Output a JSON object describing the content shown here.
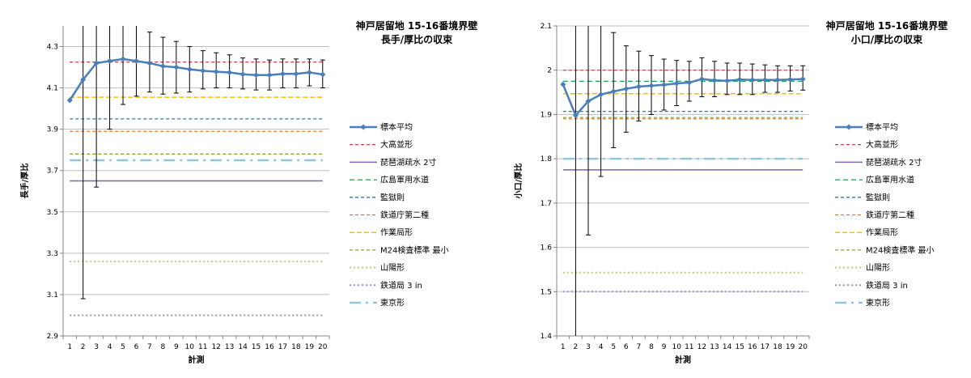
{
  "chart_data": [
    {
      "type": "line",
      "title_lines": [
        "神戸居留地 15-16番境界壁",
        "長手/厚比の収束"
      ],
      "xlabel": "計測",
      "ylabel": "長手/厚比",
      "x": [
        1,
        2,
        3,
        4,
        5,
        6,
        7,
        8,
        9,
        10,
        11,
        12,
        13,
        14,
        15,
        16,
        17,
        18,
        19,
        20
      ],
      "ylim": [
        2.9,
        4.4
      ],
      "yticks": [
        "2.9",
        "3.1",
        "3.3",
        "3.5",
        "3.7",
        "3.9",
        "4.1",
        "4.3"
      ],
      "ytick_values": [
        2.9,
        3.1,
        3.3,
        3.5,
        3.7,
        3.9,
        4.1,
        4.3
      ],
      "grid": true,
      "legend_position": "right",
      "series": [
        {
          "name": "標本平均",
          "values": [
            4.04,
            4.14,
            4.22,
            4.23,
            4.24,
            4.23,
            4.22,
            4.205,
            4.2,
            4.19,
            4.183,
            4.178,
            4.175,
            4.166,
            4.162,
            4.162,
            4.168,
            4.168,
            4.175,
            4.165
          ],
          "error_low": [
            4.04,
            3.08,
            3.62,
            3.9,
            4.02,
            4.06,
            4.08,
            4.07,
            4.075,
            4.08,
            4.095,
            4.1,
            4.1,
            4.095,
            4.09,
            4.09,
            4.1,
            4.1,
            4.11,
            4.1
          ],
          "error_high": [
            4.04,
            4.4,
            4.4,
            4.4,
            4.4,
            4.4,
            4.37,
            4.345,
            4.325,
            4.3,
            4.28,
            4.27,
            4.26,
            4.245,
            4.24,
            4.235,
            4.24,
            4.24,
            4.24,
            4.235
          ]
        }
      ],
      "reference_lines": [
        {
          "name": "大高並形",
          "value": 4.225,
          "color": "#c0504d",
          "dash": "4,3",
          "width": 1.3
        },
        {
          "name": "琵琶湖疏水 2寸",
          "value": 3.65,
          "color": "#7f66a8",
          "dash": "",
          "width": 1.5
        },
        {
          "name": "広島軍用水道",
          "value": null,
          "color": "#1aa34a",
          "dash": "6,4",
          "width": 1.3
        },
        {
          "name": "監獄則",
          "value": 3.95,
          "color": "#2e75b6",
          "dash": "4,3",
          "width": 1.3
        },
        {
          "name": "鉄道庁第二種",
          "value": 3.89,
          "color": "#e07b2a",
          "dash": "4,3",
          "width": 1.3
        },
        {
          "name": "作業局形",
          "value": 4.055,
          "color": "#f2c200",
          "dash": "6,3",
          "width": 1.5
        },
        {
          "name": "M24検査標準 最小",
          "value": 3.78,
          "color": "#7faa2d",
          "dash": "4,3",
          "width": 1.3
        },
        {
          "name": "山陽形",
          "value": 3.26,
          "color": "#c4c97a",
          "dash": "2,3",
          "width": 2
        },
        {
          "name": "鉄道局 3 in",
          "value": 3.0,
          "color": "#9b8fc9",
          "dash": "2,3",
          "width": 2
        },
        {
          "name": "東京形",
          "value": 3.75,
          "color": "#8fc6db",
          "dash": "14,6,3,6",
          "width": 2.5
        }
      ]
    },
    {
      "type": "line",
      "title_lines": [
        "神戸居留地 15-16番境界壁",
        "小口/厚比の収束"
      ],
      "xlabel": "計測",
      "ylabel": "小口/厚比",
      "x": [
        1,
        2,
        3,
        4,
        5,
        6,
        7,
        8,
        9,
        10,
        11,
        12,
        13,
        14,
        15,
        16,
        17,
        18,
        19,
        20
      ],
      "ylim": [
        1.4,
        2.1
      ],
      "yticks": [
        "1.4",
        "1.5",
        "1.6",
        "1.7",
        "1.8",
        "1.9",
        "2",
        "2.1"
      ],
      "ytick_values": [
        1.4,
        1.5,
        1.6,
        1.7,
        1.8,
        1.9,
        2.0,
        2.1
      ],
      "grid": true,
      "legend_position": "right",
      "series": [
        {
          "name": "標本平均",
          "values": [
            1.968,
            1.898,
            1.93,
            1.945,
            1.952,
            1.958,
            1.963,
            1.965,
            1.967,
            1.97,
            1.972,
            1.98,
            1.977,
            1.976,
            1.979,
            1.978,
            1.978,
            1.978,
            1.979,
            1.98
          ],
          "error_low": [
            1.968,
            1.4,
            1.628,
            1.76,
            1.825,
            1.86,
            1.885,
            1.9,
            1.91,
            1.92,
            1.93,
            1.94,
            1.94,
            1.945,
            1.945,
            1.945,
            1.95,
            1.95,
            1.953,
            1.955
          ],
          "error_high": [
            1.968,
            2.1,
            2.1,
            2.1,
            2.085,
            2.055,
            2.043,
            2.033,
            2.025,
            2.022,
            2.02,
            2.028,
            2.02,
            2.016,
            2.016,
            2.014,
            2.012,
            2.01,
            2.01,
            2.01
          ]
        }
      ],
      "reference_lines": [
        {
          "name": "大高並形",
          "value": 2.0,
          "color": "#c0504d",
          "dash": "4,3",
          "width": 1.3
        },
        {
          "name": "琵琶湖疏水 2寸",
          "value": 1.775,
          "color": "#7f66a8",
          "dash": "",
          "width": 1.5
        },
        {
          "name": "広島軍用水道",
          "value": 1.975,
          "color": "#1aa34a",
          "dash": "6,4",
          "width": 1.3
        },
        {
          "name": "監獄則",
          "value": 1.907,
          "color": "#2e75b6",
          "dash": "4,3",
          "width": 1.3
        },
        {
          "name": "鉄道庁第二種",
          "value": 1.89,
          "color": "#e07b2a",
          "dash": "4,3",
          "width": 1.3
        },
        {
          "name": "作業局形",
          "value": 1.947,
          "color": "#f2c200",
          "dash": "6,3",
          "width": 1.5
        },
        {
          "name": "M24検査標準 最小",
          "value": 1.893,
          "color": "#7faa2d",
          "dash": "4,3",
          "width": 1.3
        },
        {
          "name": "山陽形",
          "value": 1.543,
          "color": "#c4c97a",
          "dash": "2,3",
          "width": 2
        },
        {
          "name": "鉄道局 3 in",
          "value": 1.5,
          "color": "#9b8fc9",
          "dash": "2,3",
          "width": 2
        },
        {
          "name": "東京形",
          "value": 1.8,
          "color": "#8fc6db",
          "dash": "14,6,3,6",
          "width": 2.5
        }
      ]
    }
  ],
  "colors": {
    "series": "#4a7ebb",
    "grid": "#bfbfbf",
    "axis": "#868686",
    "error_bar": "#000000"
  }
}
